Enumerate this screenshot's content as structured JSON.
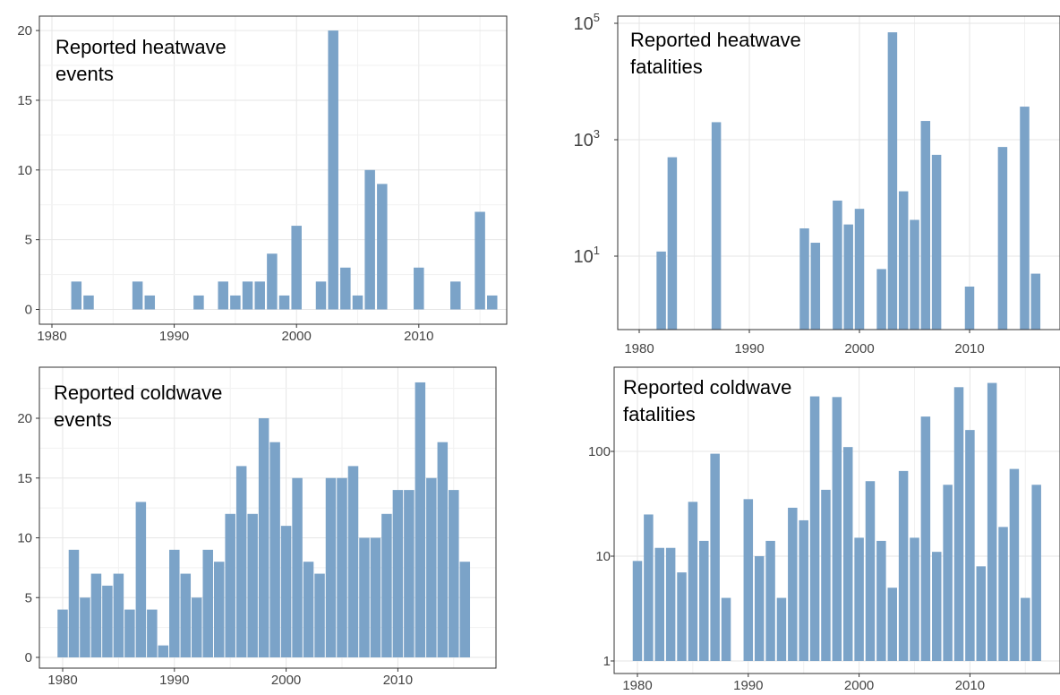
{
  "chart_data": [
    {
      "type": "bar",
      "title_lines": [
        "Reported heatwave",
        "events"
      ],
      "xlabel": "",
      "ylabel": "",
      "yscale": "linear",
      "ylim": [
        0,
        21
      ],
      "xlim": [
        1978.4,
        1977.4
      ],
      "x_ticks": [
        "1980",
        "1990",
        "2000",
        "2010"
      ],
      "y_ticks": [
        "0",
        "5",
        "10",
        "15",
        "20"
      ],
      "grid": true,
      "bar_color": "#7ba3c8",
      "x": [
        1982,
        1983,
        1987,
        1988,
        1992,
        1994,
        1995,
        1996,
        1997,
        1998,
        1999,
        2000,
        2002,
        2003,
        2004,
        2005,
        2006,
        2007,
        2010,
        2013,
        2015,
        2016
      ],
      "values": [
        2,
        1,
        2,
        1,
        1,
        2,
        1,
        2,
        2,
        4,
        1,
        6,
        2,
        20,
        3,
        1,
        10,
        9,
        3,
        2,
        7,
        1
      ]
    },
    {
      "type": "bar",
      "title_lines": [
        "Reported heatwave",
        "fatalities"
      ],
      "xlabel": "",
      "ylabel": "",
      "yscale": "log",
      "ylim": [
        0.8,
        100000
      ],
      "x_ticks": [
        "1980",
        "1990",
        "2000",
        "2010"
      ],
      "y_ticks": [
        {
          "base": "10",
          "exp": "1"
        },
        {
          "base": "10",
          "exp": "3"
        },
        {
          "base": "10",
          "exp": "5"
        }
      ],
      "grid": true,
      "bar_color": "#7ba3c8",
      "x": [
        1982,
        1983,
        1987,
        1995,
        1996,
        1998,
        1999,
        2000,
        2002,
        2003,
        2004,
        2005,
        2006,
        2007,
        2010,
        2013,
        2015,
        2016
      ],
      "values": [
        12,
        500,
        2000,
        30,
        17,
        90,
        35,
        65,
        6,
        70000,
        130,
        42,
        2100,
        550,
        3,
        750,
        3700,
        5
      ]
    },
    {
      "type": "bar",
      "title_lines": [
        "Reported coldwave",
        "events"
      ],
      "xlabel": "",
      "ylabel": "",
      "yscale": "linear",
      "ylim": [
        0,
        24
      ],
      "x_ticks": [
        "1980",
        "1990",
        "2000",
        "2010"
      ],
      "y_ticks": [
        "0",
        "5",
        "10",
        "15",
        "20"
      ],
      "grid": true,
      "bar_color": "#7ba3c8",
      "x": [
        1980,
        1981,
        1982,
        1983,
        1984,
        1985,
        1986,
        1987,
        1988,
        1989,
        1990,
        1991,
        1992,
        1993,
        1994,
        1995,
        1996,
        1997,
        1998,
        1999,
        2000,
        2001,
        2002,
        2003,
        2004,
        2005,
        2006,
        2007,
        2008,
        2009,
        2010,
        2011,
        2012,
        2013,
        2014,
        2015,
        2016
      ],
      "values": [
        4,
        9,
        5,
        7,
        6,
        7,
        4,
        13,
        4,
        1,
        9,
        7,
        5,
        9,
        8,
        12,
        16,
        12,
        20,
        18,
        11,
        15,
        8,
        7,
        15,
        15,
        16,
        10,
        10,
        12,
        14,
        14,
        23,
        15,
        18,
        14,
        8
      ]
    },
    {
      "type": "bar",
      "title_lines": [
        "Reported coldwave",
        "fatalities"
      ],
      "xlabel": "",
      "ylabel": "",
      "yscale": "log",
      "ylim": [
        0.85,
        500
      ],
      "x_ticks": [
        "1980",
        "1990",
        "2000",
        "2010"
      ],
      "y_ticks": [
        "1",
        "10",
        "100"
      ],
      "grid": true,
      "bar_color": "#7ba3c8",
      "x": [
        1980,
        1981,
        1982,
        1983,
        1984,
        1985,
        1986,
        1987,
        1988,
        1990,
        1991,
        1992,
        1993,
        1994,
        1995,
        1996,
        1997,
        1998,
        1999,
        2000,
        2001,
        2002,
        2003,
        2004,
        2005,
        2006,
        2007,
        2008,
        2009,
        2010,
        2011,
        2012,
        2013,
        2014,
        2015,
        2016
      ],
      "values": [
        9,
        25,
        12,
        12,
        7,
        33,
        14,
        95,
        4,
        35,
        10,
        14,
        4,
        29,
        22,
        335,
        43,
        330,
        110,
        15,
        52,
        14,
        5,
        65,
        15,
        215,
        11,
        48,
        410,
        160,
        8,
        450,
        19,
        68,
        4,
        48
      ]
    }
  ]
}
